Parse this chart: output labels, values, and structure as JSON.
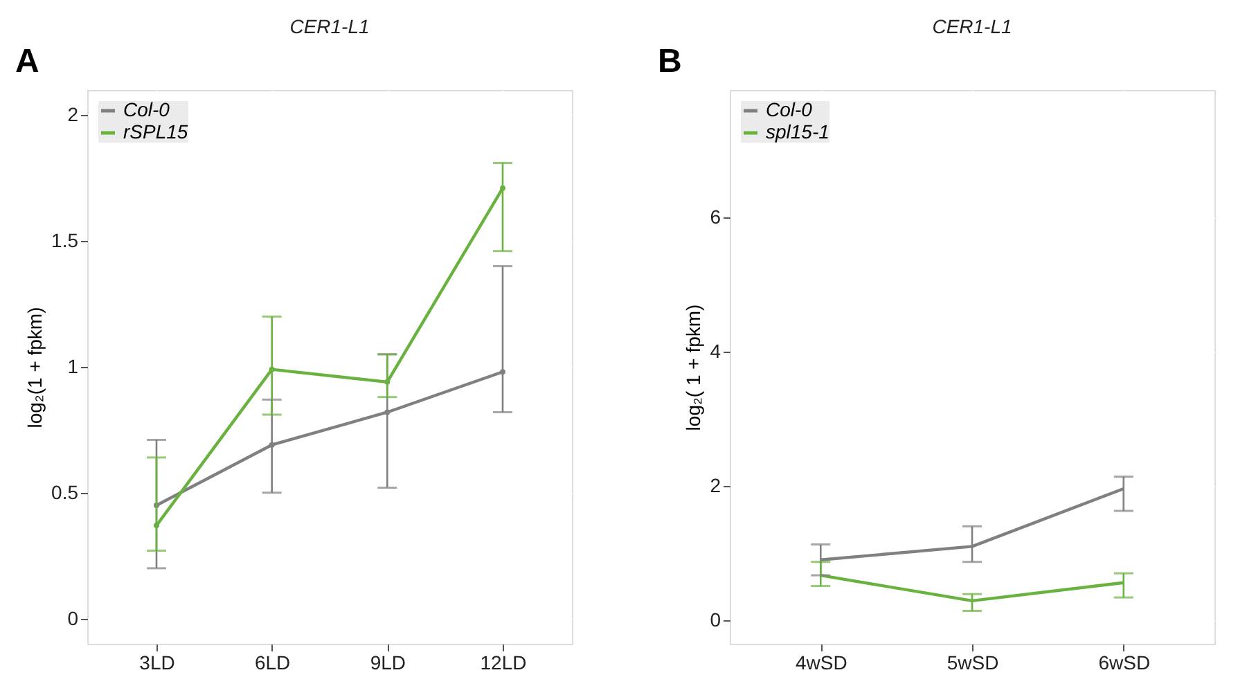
{
  "chart_data": [
    {
      "type": "line",
      "title": "CER1-L1",
      "ylabel": "log₂(1 + fpkm)",
      "annotations": [
        "A"
      ],
      "categories": [
        "3LD",
        "6LD",
        "9LD",
        "12LD"
      ],
      "ylim": [
        -0.1,
        2.1
      ],
      "yticks": [
        0,
        0.5,
        1,
        1.5,
        2
      ],
      "grid": true,
      "legend": "top left",
      "marker": "circle",
      "line_style": "solid",
      "series": [
        {
          "name": "Col-0",
          "color": "#808080",
          "values": [
            0.45,
            0.69,
            0.82,
            0.98
          ],
          "errors": [
            [
              0.2,
              0.71
            ],
            [
              0.5,
              0.87
            ],
            [
              0.52,
              1.05
            ],
            [
              0.82,
              1.4
            ]
          ]
        },
        {
          "name": "rSPL15",
          "color": "#6ab23f",
          "values": [
            0.37,
            0.99,
            0.94,
            1.71
          ],
          "errors": [
            [
              0.27,
              0.64
            ],
            [
              0.81,
              1.2
            ],
            [
              0.88,
              1.05
            ],
            [
              1.46,
              1.81
            ]
          ]
        }
      ]
    },
    {
      "type": "line",
      "title": "CER1-L1",
      "ylabel": "log₂( 1 + fpkm)",
      "annotations": [
        "B"
      ],
      "categories": [
        "4wSD",
        "5wSD",
        "6wSD"
      ],
      "ylim": [
        -0.35,
        7.9
      ],
      "yticks": [
        0,
        2,
        4,
        6
      ],
      "grid": true,
      "legend": "top left",
      "marker": "none",
      "line_style": "solid",
      "series": [
        {
          "name": "Col-0",
          "color": "#808080",
          "values": [
            0.9,
            1.1,
            1.96
          ],
          "errors": [
            [
              0.67,
              1.13
            ],
            [
              0.87,
              1.4
            ],
            [
              1.63,
              2.14
            ]
          ]
        },
        {
          "name": "spl15-1",
          "color": "#6ab23f",
          "values": [
            0.67,
            0.29,
            0.56
          ],
          "errors": [
            [
              0.51,
              0.87
            ],
            [
              0.14,
              0.39
            ],
            [
              0.34,
              0.7
            ]
          ]
        }
      ]
    }
  ]
}
